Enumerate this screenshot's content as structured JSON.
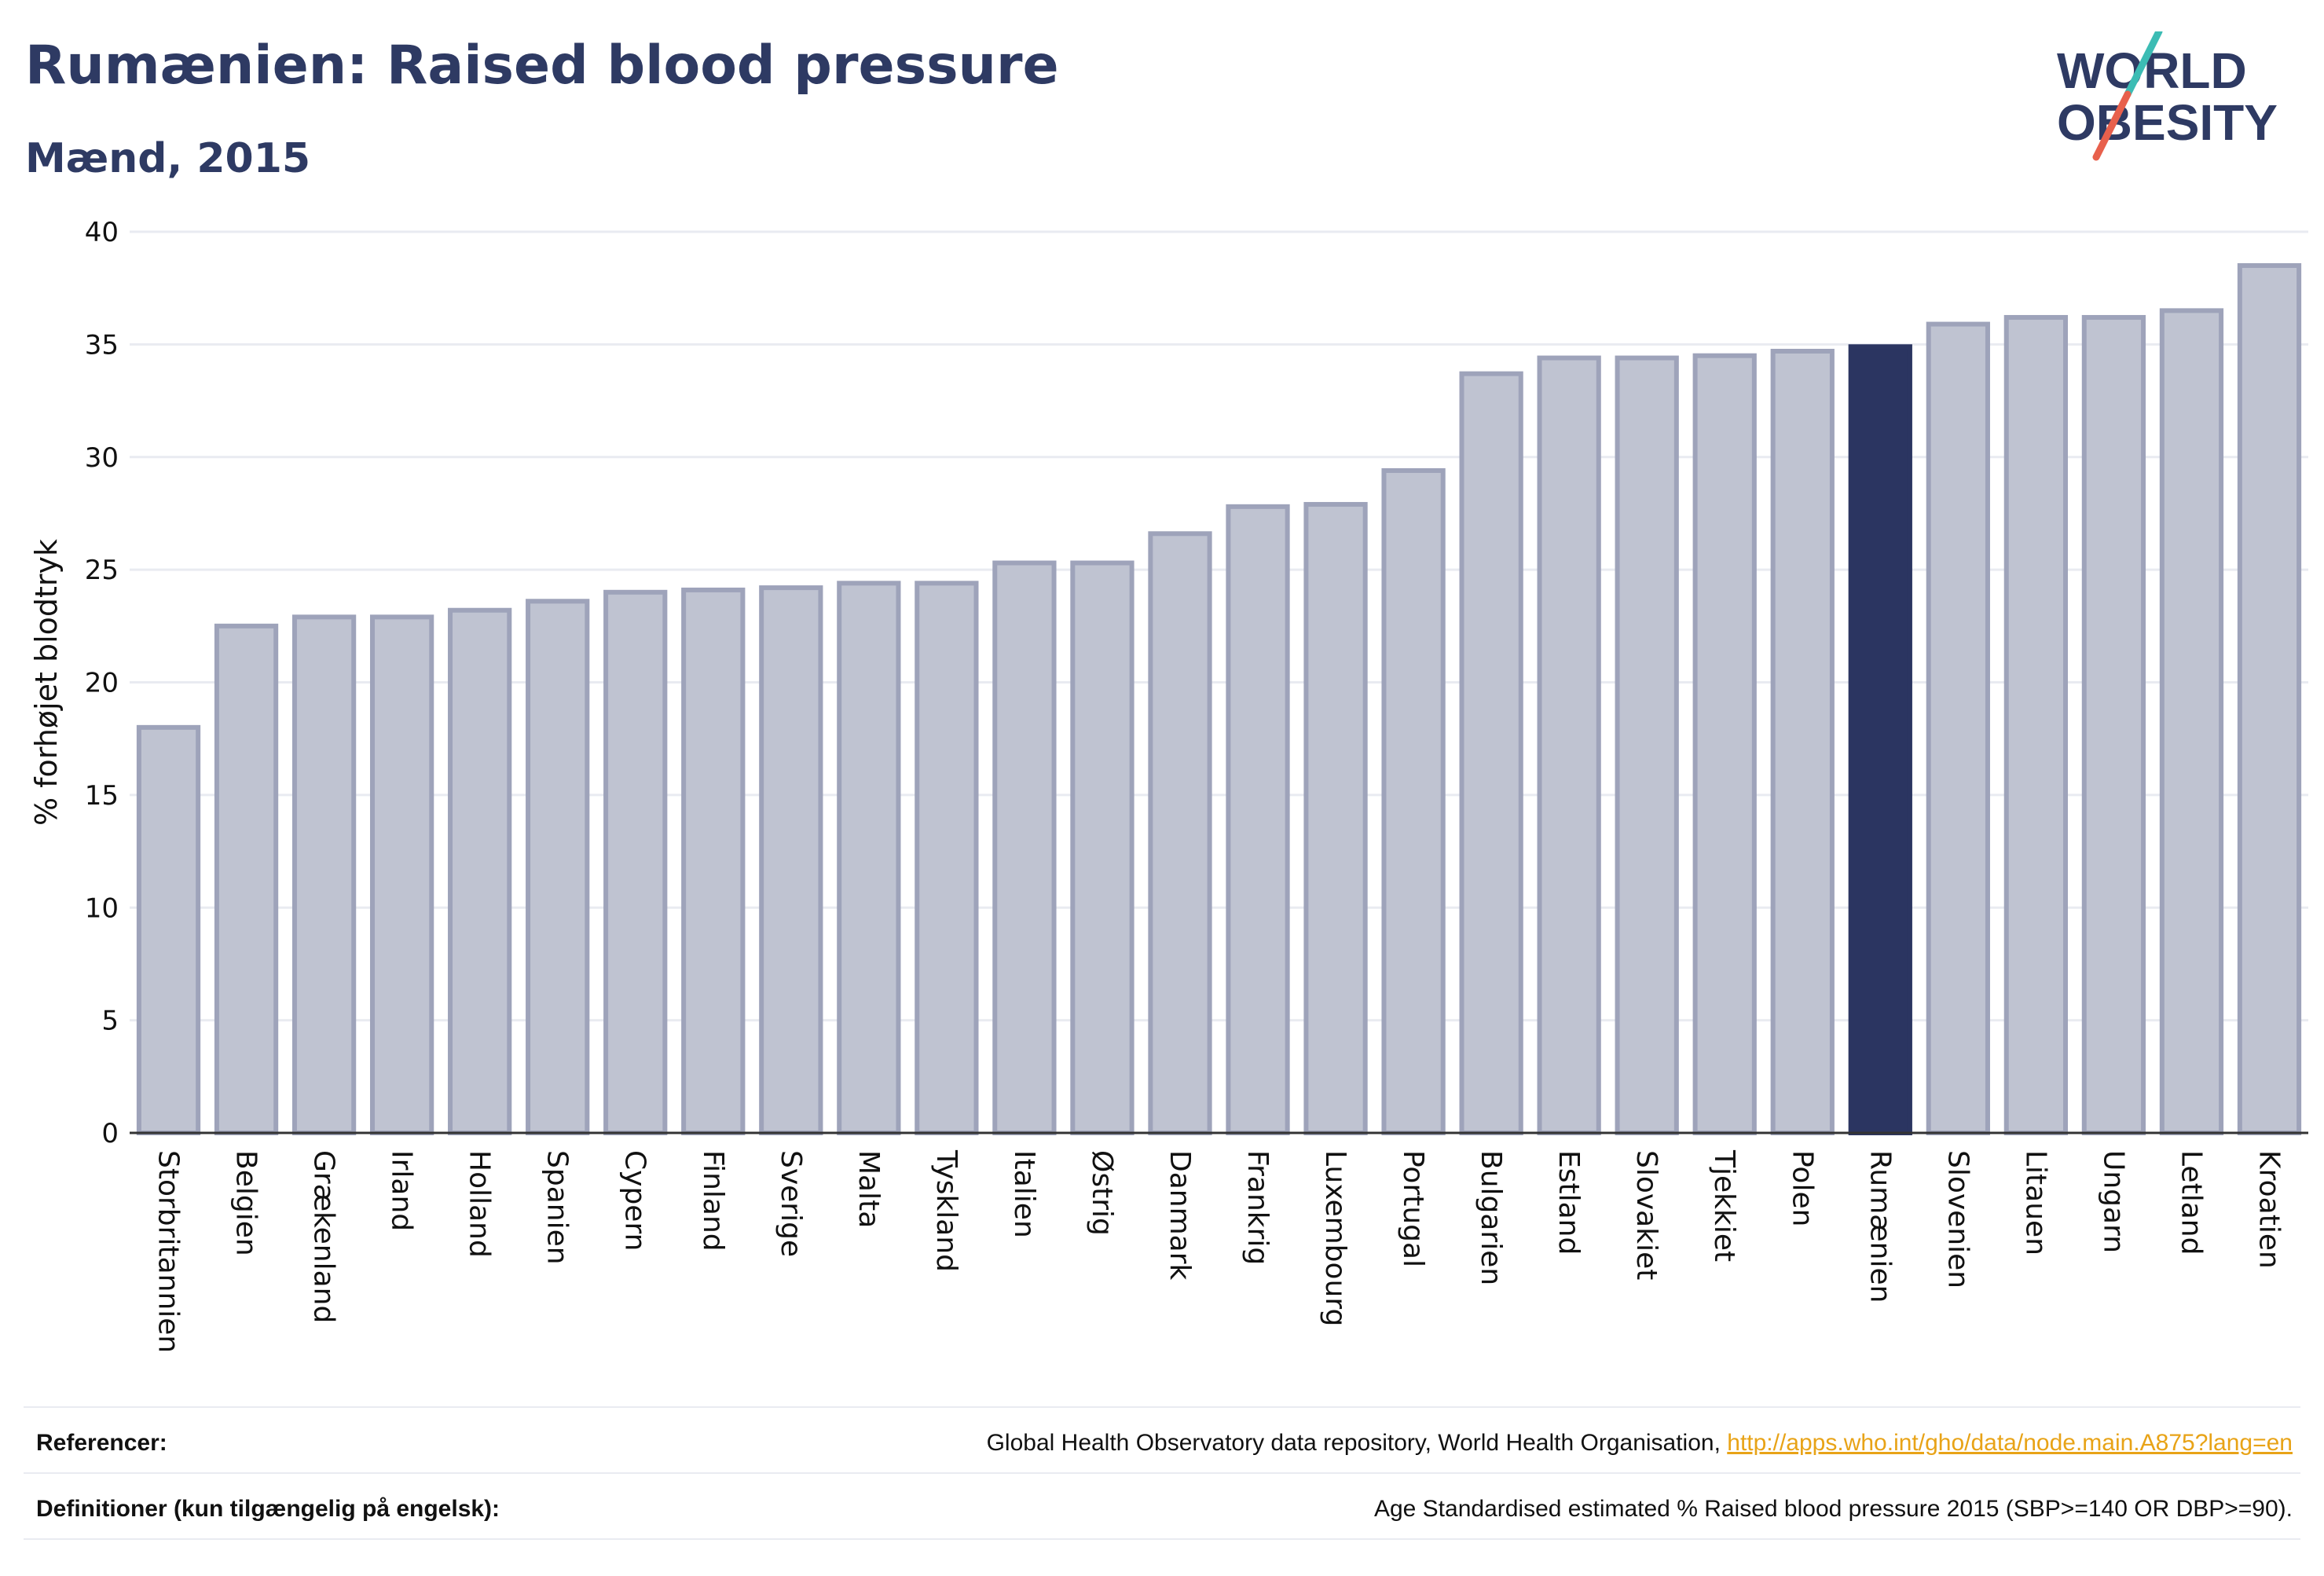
{
  "header": {
    "title": "Rumænien: Raised blood pressure",
    "subtitle": "Mænd, 2015"
  },
  "logo": {
    "line1": "WORLD",
    "line2": "OBESITY"
  },
  "colors": {
    "title": "#2e3a63",
    "bar_default": "#bfc3d1",
    "bar_default_stroke": "#9ea3ba",
    "bar_highlight": "#2b3561",
    "grid": "#e9ebf1",
    "link": "#e8a317",
    "logo_teal": "#3cbcb4",
    "logo_red": "#e8604c"
  },
  "chart_data": {
    "type": "bar",
    "ylabel": "% forhøjet blodtryk",
    "xlabel": "",
    "ylim": [
      0,
      40
    ],
    "yticks": [
      0,
      5,
      10,
      15,
      20,
      25,
      30,
      35,
      40
    ],
    "grid": true,
    "highlight": "Rumænien",
    "categories": [
      "Storbritannien",
      "Belgien",
      "Grækenland",
      "Irland",
      "Holland",
      "Spanien",
      "Cypern",
      "Finland",
      "Sverige",
      "Malta",
      "Tyskland",
      "Italien",
      "Østrig",
      "Danmark",
      "Frankrig",
      "Luxembourg",
      "Portugal",
      "Bulgarien",
      "Estland",
      "Slovakiet",
      "Tjekkiet",
      "Polen",
      "Rumænien",
      "Slovenien",
      "Litauen",
      "Ungarn",
      "Letland",
      "Kroatien"
    ],
    "values": [
      18.0,
      22.5,
      22.9,
      22.9,
      23.2,
      23.6,
      24.0,
      24.1,
      24.2,
      24.4,
      24.4,
      25.3,
      25.3,
      26.6,
      27.8,
      27.9,
      29.4,
      33.7,
      34.4,
      34.4,
      34.5,
      34.7,
      34.9,
      35.9,
      36.2,
      36.2,
      36.5,
      38.5
    ]
  },
  "footer": {
    "references_label": "Referencer:",
    "references_text": "Global Health Observatory data repository, World Health Organisation, ",
    "references_link": "http://apps.who.int/gho/data/node.main.A875?lang=en",
    "definitions_label": "Definitioner (kun tilgængelig på engelsk):",
    "definitions_text": "Age Standardised estimated % Raised blood pressure 2015 (SBP>=140 OR DBP>=90)."
  }
}
